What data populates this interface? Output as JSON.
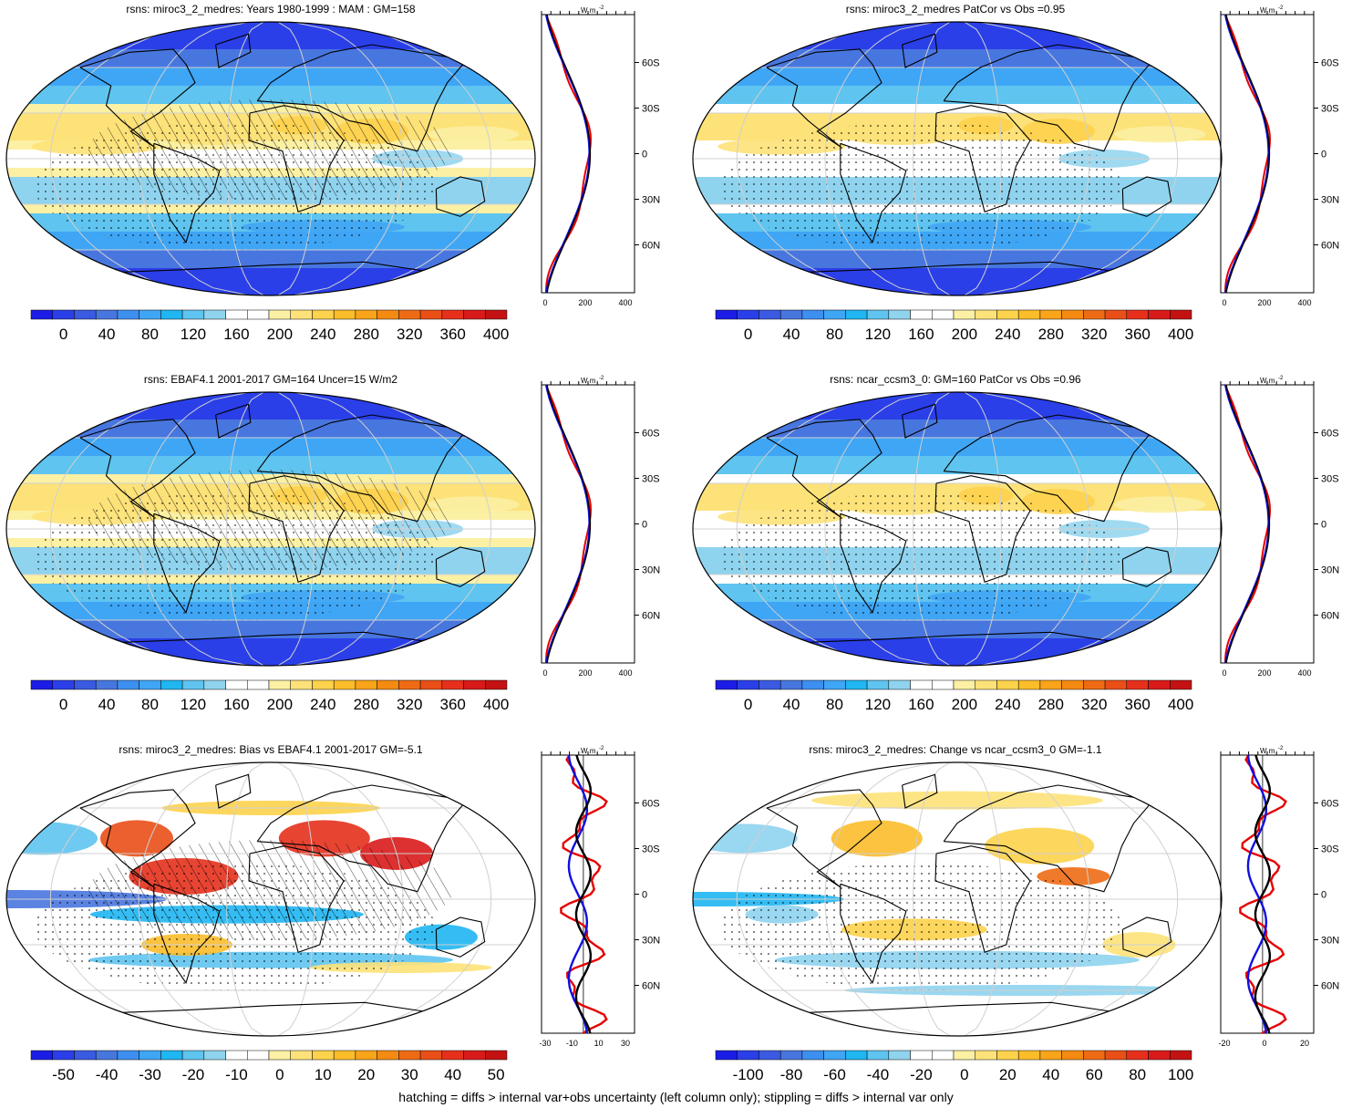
{
  "colors": {
    "abs_palette": [
      "#1b1de6",
      "#2a3fe8",
      "#3a5ae2",
      "#4876df",
      "#3d8ff0",
      "#3fa5f5",
      "#1fb6f2",
      "#5fc4ef",
      "#8fd3ee",
      "#ffffff",
      "#ffffff",
      "#fbf0a3",
      "#fde279",
      "#fdd24c",
      "#fbbd2a",
      "#f9a419",
      "#f48a12",
      "#ee6b14",
      "#e94f17",
      "#e6301c",
      "#d91a1a",
      "#c41212"
    ],
    "diff_palette": [
      "#1b1de6",
      "#2a3fe8",
      "#3a5ae2",
      "#4876df",
      "#3d8ff0",
      "#3fa5f5",
      "#1fb6f2",
      "#5fc4ef",
      "#8fd3ee",
      "#ffffff",
      "#ffffff",
      "#fbf0a3",
      "#fde279",
      "#fdd24c",
      "#fbbd2a",
      "#f9a419",
      "#f48a12",
      "#ee6b14",
      "#e94f17",
      "#e6301c",
      "#d91a1a",
      "#c41212"
    ],
    "model_line": "#e60000",
    "obs_line": "#1010e0",
    "mean_line": "#000000"
  },
  "panels": [
    {
      "title": "rsns: miroc3_2_medres: Years 1980-1999 : MAM : GM=158",
      "kind": "abs",
      "hatch": true,
      "cbar_labels": [
        "0",
        "40",
        "80",
        "120",
        "160",
        "200",
        "240",
        "280",
        "320",
        "360",
        "400"
      ],
      "prof_xticks": [
        "0",
        "200",
        "400"
      ],
      "prof_unit": "W m",
      "prof_yticks": [
        "60N",
        "30N",
        "0",
        "30S",
        "60S"
      ]
    },
    {
      "title": "rsns: miroc3_2_medres PatCor vs Obs =0.95",
      "kind": "abs",
      "hatch": false,
      "cbar_labels": [
        "0",
        "40",
        "80",
        "120",
        "160",
        "200",
        "240",
        "280",
        "320",
        "360",
        "400"
      ],
      "prof_xticks": [
        "0",
        "200",
        "400"
      ],
      "prof_unit": "W m",
      "prof_yticks": [
        "60N",
        "30N",
        "0",
        "30S",
        "60S"
      ]
    },
    {
      "title": "rsns: EBAF4.1 2001-2017 GM=164 Uncer=15 W/m2",
      "kind": "abs",
      "hatch": true,
      "cbar_labels": [
        "0",
        "40",
        "80",
        "120",
        "160",
        "200",
        "240",
        "280",
        "320",
        "360",
        "400"
      ],
      "prof_xticks": [
        "0",
        "200",
        "400"
      ],
      "prof_unit": "W m",
      "prof_yticks": [
        "60N",
        "30N",
        "0",
        "30S",
        "60S"
      ]
    },
    {
      "title": "rsns: ncar_ccsm3_0: GM=160 PatCor vs Obs =0.96",
      "kind": "abs",
      "hatch": false,
      "cbar_labels": [
        "0",
        "40",
        "80",
        "120",
        "160",
        "200",
        "240",
        "280",
        "320",
        "360",
        "400"
      ],
      "prof_xticks": [
        "0",
        "200",
        "400"
      ],
      "prof_unit": "W m",
      "prof_yticks": [
        "60N",
        "30N",
        "0",
        "30S",
        "60S"
      ]
    },
    {
      "title": "rsns: miroc3_2_medres: Bias vs EBAF4.1 2001-2017 GM=-5.1",
      "kind": "bias",
      "hatch": true,
      "cbar_labels": [
        "-50",
        "-40",
        "-30",
        "-20",
        "-10",
        "0",
        "10",
        "20",
        "30",
        "40",
        "50"
      ],
      "prof_xticks": [
        "-30",
        "-10",
        "10",
        "30"
      ],
      "prof_unit": "W m",
      "prof_yticks": [
        "60N",
        "30N",
        "0",
        "30S",
        "60S"
      ]
    },
    {
      "title": "rsns: miroc3_2_medres: Change vs ncar_ccsm3_0 GM=-1.1",
      "kind": "change",
      "hatch": false,
      "cbar_labels": [
        "-100",
        "-80",
        "-60",
        "-40",
        "-20",
        "0",
        "20",
        "40",
        "60",
        "80",
        "100"
      ],
      "prof_xticks": [
        "-20",
        "0",
        "20"
      ],
      "prof_unit": "W m",
      "prof_yticks": [
        "60N",
        "30N",
        "0",
        "30S",
        "60S"
      ]
    }
  ],
  "footnote": "hatching = diffs > internal var+obs uncertainty (left column only); stippling = diffs > internal var only"
}
